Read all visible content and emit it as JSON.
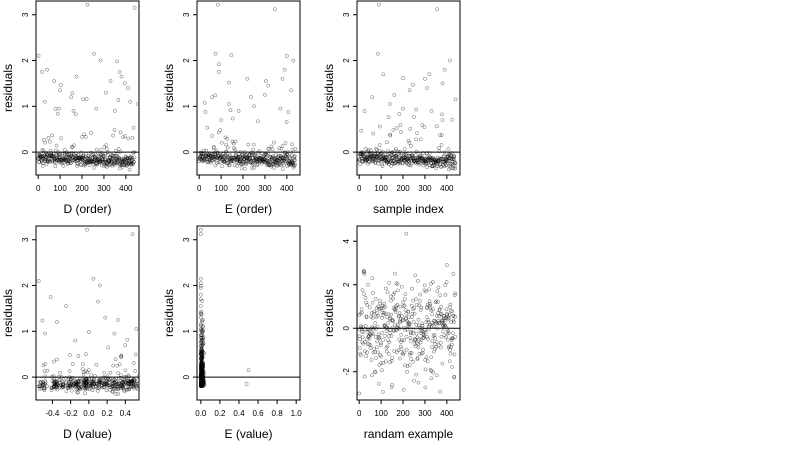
{
  "chart_data": [
    {
      "type": "scatter",
      "xlabel": "D (order)",
      "ylabel": "residuals",
      "xlim": [
        -10,
        460
      ],
      "ylim": [
        -0.5,
        3.3
      ],
      "xticks": [
        0,
        100,
        200,
        300,
        400
      ],
      "yticks": [
        0,
        1,
        2,
        3
      ],
      "xtick_labels": [
        "0",
        "100",
        "200",
        "300",
        "400"
      ],
      "ytick_labels": [
        "0",
        "1",
        "2",
        "3"
      ],
      "hline": 0,
      "n_points": 440,
      "seed": 11,
      "points": [
        [
          2,
          2.1
        ],
        [
          18,
          1.75
        ],
        [
          40,
          1.8
        ],
        [
          73,
          1.55
        ],
        [
          100,
          1.35
        ],
        [
          225,
          3.22
        ],
        [
          255,
          2.15
        ],
        [
          175,
          1.65
        ],
        [
          285,
          2.0
        ],
        [
          330,
          1.55
        ],
        [
          360,
          1.98
        ],
        [
          372,
          1.75
        ],
        [
          380,
          1.65
        ],
        [
          395,
          1.5
        ],
        [
          410,
          1.4
        ],
        [
          420,
          1.1
        ],
        [
          440,
          3.15
        ],
        [
          455,
          1.05
        ],
        [
          30,
          1.1
        ],
        [
          150,
          1.2
        ],
        [
          205,
          1.15
        ],
        [
          310,
          1.3
        ],
        [
          95,
          0.95
        ],
        [
          265,
          0.95
        ],
        [
          350,
          0.9
        ]
      ]
    },
    {
      "type": "scatter",
      "xlabel": "E (order)",
      "ylabel": "residuals",
      "xlim": [
        -10,
        460
      ],
      "ylim": [
        -0.5,
        3.3
      ],
      "xticks": [
        0,
        100,
        200,
        300,
        400
      ],
      "yticks": [
        0,
        1,
        2,
        3
      ],
      "xtick_labels": [
        "0",
        "100",
        "200",
        "300",
        "400"
      ],
      "ytick_labels": [
        "0",
        "1",
        "2",
        "3"
      ],
      "hline": 0,
      "n_points": 440,
      "seed": 23,
      "points": [
        [
          85,
          3.22
        ],
        [
          345,
          3.12
        ],
        [
          75,
          2.15
        ],
        [
          400,
          2.1
        ],
        [
          430,
          2.0
        ],
        [
          90,
          1.75
        ],
        [
          220,
          1.6
        ],
        [
          305,
          1.55
        ],
        [
          315,
          1.45
        ],
        [
          390,
          1.8
        ],
        [
          380,
          1.6
        ],
        [
          420,
          1.35
        ],
        [
          135,
          1.05
        ],
        [
          60,
          1.2
        ],
        [
          250,
          1.0
        ],
        [
          300,
          1.25
        ],
        [
          180,
          0.9
        ],
        [
          370,
          0.95
        ]
      ]
    },
    {
      "type": "scatter",
      "xlabel": "sample index",
      "ylabel": "residuals",
      "xlim": [
        -10,
        460
      ],
      "ylim": [
        -0.5,
        3.3
      ],
      "xticks": [
        0,
        100,
        200,
        300,
        400
      ],
      "yticks": [
        0,
        1,
        2,
        3
      ],
      "xtick_labels": [
        "0",
        "100",
        "200",
        "300",
        "400"
      ],
      "ytick_labels": [
        "0",
        "1",
        "2",
        "3"
      ],
      "hline": 0,
      "n_points": 440,
      "seed": 37,
      "points": [
        [
          90,
          3.22
        ],
        [
          355,
          3.12
        ],
        [
          85,
          2.15
        ],
        [
          415,
          2.0
        ],
        [
          110,
          1.7
        ],
        [
          390,
          1.8
        ],
        [
          300,
          1.6
        ],
        [
          310,
          1.4
        ],
        [
          160,
          1.25
        ],
        [
          230,
          1.35
        ],
        [
          380,
          1.5
        ],
        [
          60,
          1.2
        ],
        [
          140,
          1.05
        ],
        [
          440,
          1.15
        ],
        [
          200,
          0.95
        ],
        [
          330,
          0.9
        ]
      ]
    },
    {
      "type": "scatter",
      "xlabel": "D (value)",
      "ylabel": "residuals",
      "xlim": [
        -0.58,
        0.55
      ],
      "ylim": [
        -0.5,
        3.3
      ],
      "xticks": [
        -0.4,
        -0.2,
        0.0,
        0.2,
        0.4
      ],
      "yticks": [
        0,
        1,
        2,
        3
      ],
      "xtick_labels": [
        "-0.4",
        "-0.2",
        "0.0",
        "0.2",
        "0.4"
      ],
      "ytick_labels": [
        "0",
        "1",
        "2",
        "3"
      ],
      "hline": 0,
      "n_points": 440,
      "seed": 51,
      "points": [
        [
          -0.02,
          3.22
        ],
        [
          0.05,
          2.15
        ],
        [
          -0.55,
          2.1
        ],
        [
          0.12,
          2.0
        ],
        [
          0.48,
          3.12
        ],
        [
          -0.42,
          1.75
        ],
        [
          -0.25,
          1.55
        ],
        [
          0.1,
          1.65
        ],
        [
          0.32,
          1.25
        ],
        [
          -0.35,
          1.2
        ],
        [
          0.28,
          0.95
        ],
        [
          0.52,
          1.05
        ],
        [
          -0.48,
          0.95
        ],
        [
          0.18,
          1.3
        ],
        [
          -0.15,
          0.8
        ],
        [
          0.4,
          0.7
        ]
      ]
    },
    {
      "type": "scatter",
      "xlabel": "E (value)",
      "ylabel": "residuals",
      "xlim": [
        -0.04,
        1.04
      ],
      "ylim": [
        -0.5,
        3.3
      ],
      "xticks": [
        0.0,
        0.2,
        0.4,
        0.6,
        0.8,
        1.0
      ],
      "yticks": [
        0,
        1,
        2,
        3
      ],
      "xtick_labels": [
        "0.0",
        "0.2",
        "0.4",
        "0.6",
        "0.8",
        "1.0"
      ],
      "ytick_labels": [
        "0",
        "1",
        "2",
        "3"
      ],
      "hline": 0,
      "n_points": 440,
      "seed": 67,
      "points": [
        [
          0.0,
          3.22
        ],
        [
          0.0,
          3.12
        ],
        [
          0.0,
          2.15
        ],
        [
          0.0,
          2.05
        ],
        [
          0.0,
          1.95
        ],
        [
          0.0,
          1.8
        ],
        [
          0.0,
          1.7
        ],
        [
          0.0,
          1.55
        ],
        [
          0.0,
          1.4
        ],
        [
          0.0,
          1.3
        ],
        [
          0.0,
          1.15
        ],
        [
          0.0,
          1.05
        ],
        [
          0.5,
          0.15
        ],
        [
          0.48,
          -0.15
        ]
      ]
    },
    {
      "type": "scatter",
      "xlabel": "randam example",
      "ylabel": "residuals",
      "xlim": [
        -10,
        460
      ],
      "ylim": [
        -3.3,
        4.7
      ],
      "xticks": [
        0,
        100,
        200,
        300,
        400
      ],
      "yticks": [
        -2,
        0,
        2,
        4
      ],
      "xtick_labels": [
        "0",
        "100",
        "200",
        "300",
        "400"
      ],
      "ytick_labels": [
        "-2",
        "0",
        "2",
        "4"
      ],
      "hline": 0,
      "n_points": 440,
      "seed": 83,
      "points": [
        [
          215,
          4.35
        ],
        [
          400,
          2.9
        ],
        [
          0,
          -3.0
        ],
        [
          150,
          -2.6
        ],
        [
          270,
          -2.5
        ],
        [
          90,
          -2.55
        ],
        [
          330,
          -2.3
        ],
        [
          430,
          2.5
        ],
        [
          60,
          2.3
        ]
      ]
    }
  ]
}
